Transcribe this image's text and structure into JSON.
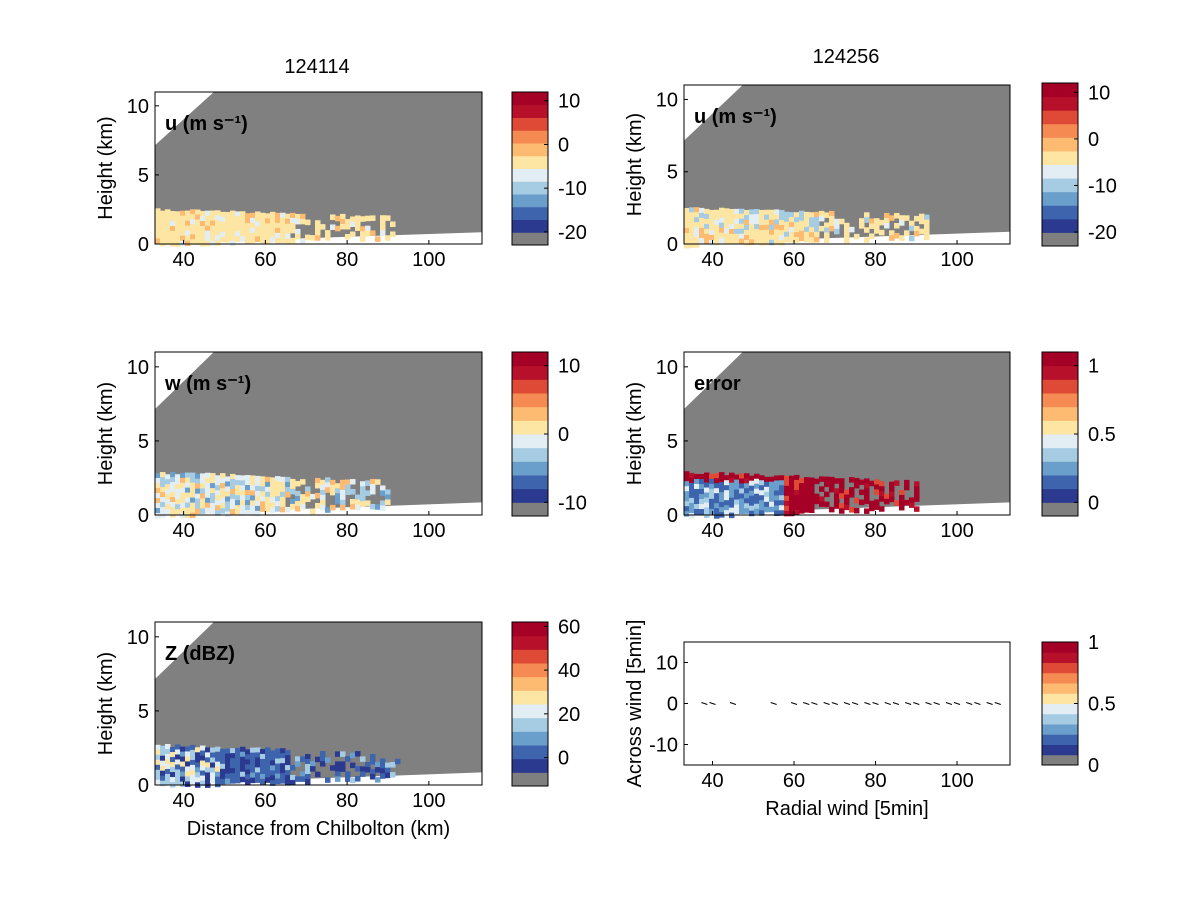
{
  "figure": {
    "titles": {
      "left": "124114",
      "right": "124256"
    }
  },
  "colormap": [
    "#7f7f7f",
    "#2b3a8f",
    "#3d64ad",
    "#6a9ecb",
    "#a6cce3",
    "#e2eef4",
    "#fde6a3",
    "#fdba71",
    "#f68a53",
    "#de4a35",
    "#b7102b",
    "#a50026"
  ],
  "colors": {
    "mask_gray": "#808080",
    "axes_bg": "#ffffff",
    "text": "#000000"
  },
  "chart_data": [
    {
      "id": "u-124114",
      "type": "heatmap",
      "title": "124114",
      "field_label": "u (m s⁻¹)",
      "xlabel": "",
      "ylabel": "Height (km)",
      "xlim": [
        33,
        113
      ],
      "ylim": [
        0,
        11
      ],
      "xticks": [
        40,
        60,
        80,
        100
      ],
      "yticks": [
        0,
        5,
        10
      ],
      "colorbar": {
        "ticks": [
          10,
          0,
          -10,
          -20
        ],
        "clim": [
          -23,
          12
        ]
      },
      "data_region": {
        "x_range": [
          33,
          91
        ],
        "top_height_km": 2.6,
        "dominant_color": "light orange (≈ 0 to 5 m/s)"
      }
    },
    {
      "id": "u-124256",
      "type": "heatmap",
      "title": "124256",
      "field_label": "u (m s⁻¹)",
      "xlabel": "",
      "ylabel": "Height (km)",
      "xlim": [
        33,
        113
      ],
      "ylim": [
        0,
        11
      ],
      "xticks": [
        40,
        60,
        80,
        100
      ],
      "yticks": [
        0,
        5,
        10
      ],
      "colorbar": {
        "ticks": [
          10,
          0,
          -10,
          -20
        ],
        "clim": [
          -23,
          12
        ]
      },
      "data_region": {
        "x_range": [
          33,
          93
        ],
        "top_height_km": 2.6,
        "dominant_color": "light orange (≈ 0 to 5 m/s)"
      }
    },
    {
      "id": "w-124114",
      "type": "heatmap",
      "field_label": "w (m s⁻¹)",
      "xlabel": "",
      "ylabel": "Height (km)",
      "xlim": [
        33,
        113
      ],
      "ylim": [
        0,
        11
      ],
      "xticks": [
        40,
        60,
        80,
        100
      ],
      "yticks": [
        0,
        5,
        10
      ],
      "colorbar": {
        "ticks": [
          10,
          0,
          -10
        ],
        "clim": [
          -12,
          12
        ]
      },
      "data_region": {
        "x_range": [
          33,
          90
        ],
        "top_height_km": 3.0,
        "dominant_color": "pale blue / pale yellow (≈ -2 to 2 m/s)"
      }
    },
    {
      "id": "error-124256",
      "type": "heatmap",
      "field_label": "error",
      "xlabel": "",
      "ylabel": "Height (km)",
      "xlim": [
        33,
        113
      ],
      "ylim": [
        0,
        11
      ],
      "xticks": [
        40,
        60,
        80,
        100
      ],
      "yticks": [
        0,
        5,
        10
      ],
      "colorbar": {
        "ticks": [
          1,
          0.5,
          0
        ],
        "clim": [
          -0.1,
          1.1
        ]
      },
      "data_region": {
        "x_range": [
          33,
          90
        ],
        "top_height_km": 3.0,
        "dominant_color": "dark red (≈ 1) with blue core near 35-55 km"
      }
    },
    {
      "id": "z-124114",
      "type": "heatmap",
      "field_label": "Z (dBZ)",
      "xlabel": "Distance from Chilbolton (km)",
      "ylabel": "Height (km)",
      "xlim": [
        33,
        113
      ],
      "ylim": [
        0,
        11
      ],
      "xticks": [
        40,
        60,
        80,
        100
      ],
      "yticks": [
        0,
        5,
        10
      ],
      "colorbar": {
        "ticks": [
          60,
          40,
          20,
          0
        ],
        "clim": [
          -13,
          62
        ]
      },
      "data_region": {
        "x_range": [
          33,
          92
        ],
        "top_height_km": 2.8,
        "dominant_color": "blue (≈ 0 to 15 dBZ), lighter near 33-50 km"
      }
    },
    {
      "id": "wind-vectors",
      "type": "scatter",
      "xlabel": "Radial wind [5min]",
      "ylabel": "Across wind [5min]",
      "xlim": [
        33,
        113
      ],
      "ylim": [
        -15,
        15
      ],
      "xticks": [
        40,
        60,
        80,
        100
      ],
      "yticks": [
        10,
        0,
        -10
      ],
      "colorbar": {
        "ticks": [
          1,
          0.5,
          0
        ],
        "clim": [
          0,
          1
        ]
      },
      "x": [
        38,
        40,
        45,
        55,
        60,
        63,
        65,
        68,
        70,
        73,
        75,
        78,
        80,
        83,
        85,
        88,
        90,
        93,
        95,
        98,
        100,
        103,
        105,
        108,
        110
      ],
      "y": [
        0,
        0,
        0,
        0,
        0,
        0,
        0,
        0,
        0,
        0,
        0,
        0,
        0,
        0,
        0,
        0,
        0,
        0,
        0,
        0,
        0,
        0,
        0,
        0,
        0
      ]
    }
  ]
}
